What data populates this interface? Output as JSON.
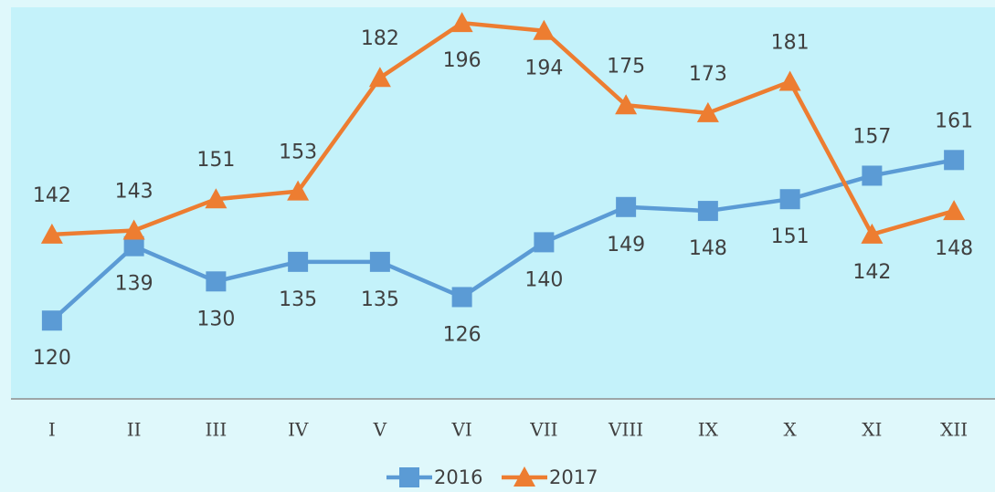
{
  "chart_data": {
    "type": "line",
    "categories": [
      "I",
      "II",
      "III",
      "IV",
      "V",
      "VI",
      "VII",
      "VIII",
      "IX",
      "X",
      "XI",
      "XII"
    ],
    "series": [
      {
        "name": "2016",
        "color": "#5b9bd5",
        "marker": "square",
        "values": [
          120,
          139,
          130,
          135,
          135,
          126,
          140,
          149,
          148,
          151,
          157,
          161
        ]
      },
      {
        "name": "2017",
        "color": "#ed7d31",
        "marker": "triangle",
        "values": [
          142,
          143,
          151,
          153,
          182,
          196,
          194,
          175,
          173,
          181,
          142,
          148
        ]
      }
    ],
    "ylim": [
      100,
      200
    ],
    "grid": false,
    "legend": "bottom"
  }
}
